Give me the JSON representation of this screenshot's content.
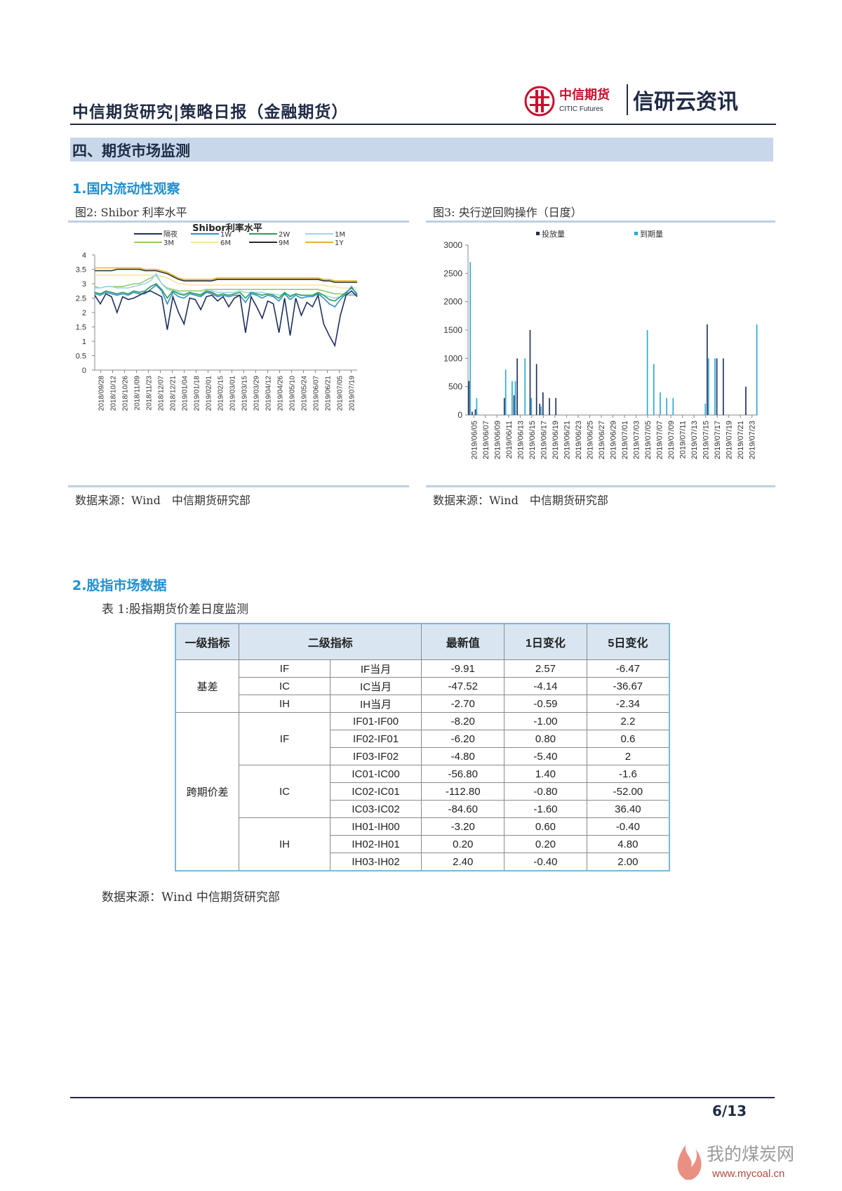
{
  "header": {
    "title": "中信期货研究|策略日报（金融期货）",
    "logo_cn": "中信期货",
    "logo_en": "CITIC Futures",
    "brand": "信研云资讯"
  },
  "section": {
    "title": "四、期货市场监测"
  },
  "sub1": {
    "title": "1.国内流动性观察"
  },
  "fig2": {
    "caption": "图2: Shibor 利率水平",
    "source": "数据来源：Wind　中信期货研究部"
  },
  "fig3": {
    "caption": "图3: 央行逆回购操作（日度）",
    "source": "数据来源：Wind　中信期货研究部"
  },
  "sub2": {
    "title": "2.股指市场数据"
  },
  "table": {
    "caption": "表 1:股指期货价差日度监测",
    "headers": [
      "一级指标",
      "二级指标",
      "最新值",
      "1日变化",
      "5日变化"
    ],
    "basis_label": "基差",
    "spread_label": "跨期价差",
    "basis_rows": [
      [
        "IF",
        "IF当月",
        "-9.91",
        "2.57",
        "-6.47"
      ],
      [
        "IC",
        "IC当月",
        "-47.52",
        "-4.14",
        "-36.67"
      ],
      [
        "IH",
        "IH当月",
        "-2.70",
        "-0.59",
        "-2.34"
      ]
    ],
    "spread_groups": [
      {
        "name": "IF",
        "rows": [
          [
            "IF01-IF00",
            "-8.20",
            "-1.00",
            "2.2"
          ],
          [
            "IF02-IF01",
            "-6.20",
            "0.80",
            "0.6"
          ],
          [
            "IF03-IF02",
            "-4.80",
            "-5.40",
            "2"
          ]
        ]
      },
      {
        "name": "IC",
        "rows": [
          [
            "IC01-IC00",
            "-56.80",
            "1.40",
            "-1.6"
          ],
          [
            "IC02-IC01",
            "-112.80",
            "-0.80",
            "-52.00"
          ],
          [
            "IC03-IC02",
            "-84.60",
            "-1.60",
            "36.40"
          ]
        ]
      },
      {
        "name": "IH",
        "rows": [
          [
            "IH01-IH00",
            "-3.20",
            "0.60",
            "-0.40"
          ],
          [
            "IH02-IH01",
            "0.20",
            "0.20",
            "4.80"
          ],
          [
            "IH03-IH02",
            "2.40",
            "-0.40",
            "2.00"
          ]
        ]
      }
    ],
    "source": "数据来源：Wind  中信期货研究部"
  },
  "footer": {
    "page": "6/13",
    "watermark_cn": "我的煤炭网",
    "watermark_url": "www.mycoal.cn"
  },
  "chart_data": [
    {
      "type": "line",
      "title": "Shibor利率水平",
      "legend": [
        "隔夜",
        "1W",
        "2W",
        "1M",
        "3M",
        "6M",
        "9M",
        "1Y"
      ],
      "colors": [
        "#1f2f5c",
        "#2e8fc6",
        "#2e9a58",
        "#9fd3ef",
        "#8fcf68",
        "#f6e5a0",
        "#2b2b2b",
        "#e3b22a"
      ],
      "ylim": [
        0,
        4
      ],
      "yticks": [
        "0",
        "0.5",
        "1",
        "1.5",
        "2",
        "2.5",
        "3",
        "3.5",
        "4"
      ],
      "xticks": [
        "2018/09/28",
        "2018/10/12",
        "2018/10/26",
        "2018/11/09",
        "2018/11/23",
        "2018/12/07",
        "2018/12/21",
        "2019/01/04",
        "2019/01/18",
        "2019/02/01",
        "2019/02/15",
        "2019/03/01",
        "2019/03/15",
        "2019/03/29",
        "2019/04/12",
        "2019/04/26",
        "2019/05/10",
        "2019/05/24",
        "2019/06/07",
        "2019/06/21",
        "2019/07/05",
        "2019/07/19"
      ],
      "series": [
        {
          "name": "隔夜",
          "values": [
            2.6,
            2.3,
            2.65,
            2.55,
            2.0,
            2.55,
            2.45,
            2.5,
            2.6,
            2.7,
            2.75,
            2.65,
            2.55,
            1.4,
            2.55,
            2.0,
            1.6,
            2.5,
            2.45,
            2.1,
            2.55,
            2.6,
            2.4,
            2.55,
            2.2,
            2.5,
            2.6,
            1.3,
            2.55,
            2.2,
            1.8,
            2.4,
            2.3,
            1.3,
            2.5,
            1.2,
            2.5,
            1.9,
            2.35,
            2.2,
            2.6,
            1.6,
            1.2,
            0.85,
            1.9,
            2.6,
            2.75,
            2.55
          ]
        },
        {
          "name": "1W",
          "values": [
            2.65,
            2.6,
            2.7,
            2.65,
            2.6,
            2.65,
            2.6,
            2.7,
            2.65,
            2.65,
            2.8,
            2.95,
            2.75,
            2.3,
            2.7,
            2.55,
            2.5,
            2.65,
            2.6,
            2.55,
            2.7,
            2.65,
            2.55,
            2.6,
            2.55,
            2.6,
            2.6,
            2.35,
            2.65,
            2.6,
            2.5,
            2.6,
            2.55,
            2.4,
            2.65,
            2.45,
            2.6,
            2.5,
            2.55,
            2.55,
            2.65,
            2.5,
            2.3,
            2.2,
            2.45,
            2.65,
            2.9,
            2.6
          ]
        },
        {
          "name": "2W",
          "values": [
            2.7,
            2.65,
            2.75,
            2.7,
            2.65,
            2.7,
            2.65,
            2.75,
            2.7,
            2.75,
            2.9,
            3.0,
            2.8,
            2.5,
            2.75,
            2.65,
            2.6,
            2.7,
            2.65,
            2.6,
            2.75,
            2.7,
            2.6,
            2.65,
            2.6,
            2.65,
            2.7,
            2.5,
            2.7,
            2.65,
            2.6,
            2.65,
            2.6,
            2.5,
            2.7,
            2.55,
            2.65,
            2.6,
            2.6,
            2.6,
            2.7,
            2.6,
            2.45,
            2.4,
            2.55,
            2.7,
            2.85,
            2.65
          ]
        },
        {
          "name": "1M",
          "values": [
            2.85,
            2.85,
            2.9,
            2.9,
            2.85,
            2.85,
            2.85,
            2.9,
            2.95,
            3.0,
            3.1,
            3.35,
            3.0,
            2.8,
            2.75,
            2.7,
            2.65,
            2.7,
            2.65,
            2.65,
            2.75,
            2.75,
            2.7,
            2.7,
            2.7,
            2.7,
            2.75,
            2.7,
            2.7,
            2.7,
            2.7,
            2.65,
            2.65,
            2.6,
            2.65,
            2.6,
            2.65,
            2.6,
            2.6,
            2.6,
            2.65,
            2.6,
            2.55,
            2.5,
            2.55,
            2.6,
            2.65,
            2.6
          ]
        },
        {
          "name": "3M",
          "values": [
            2.9,
            2.85,
            2.9,
            2.9,
            2.9,
            2.9,
            2.95,
            3.0,
            3.0,
            3.1,
            3.2,
            3.3,
            3.0,
            2.85,
            2.8,
            2.75,
            2.75,
            2.75,
            2.75,
            2.75,
            2.8,
            2.8,
            2.8,
            2.8,
            2.8,
            2.8,
            2.8,
            2.8,
            2.8,
            2.8,
            2.8,
            2.8,
            2.8,
            2.8,
            2.8,
            2.8,
            2.8,
            2.8,
            2.8,
            2.8,
            2.8,
            2.75,
            2.7,
            2.65,
            2.65,
            2.6,
            2.6,
            2.6
          ]
        },
        {
          "name": "6M",
          "values": [
            3.3,
            3.3,
            3.3,
            3.3,
            3.3,
            3.3,
            3.3,
            3.3,
            3.3,
            3.3,
            3.3,
            3.3,
            3.25,
            3.2,
            3.1,
            3.0,
            3.0,
            2.95,
            2.95,
            2.95,
            2.95,
            2.95,
            2.95,
            2.95,
            2.95,
            2.95,
            2.95,
            2.95,
            2.95,
            2.95,
            2.95,
            2.95,
            2.95,
            2.95,
            2.95,
            2.95,
            2.95,
            2.95,
            2.95,
            2.95,
            2.95,
            2.95,
            2.9,
            2.9,
            2.85,
            2.85,
            2.85,
            2.85
          ]
        },
        {
          "name": "9M",
          "values": [
            3.45,
            3.45,
            3.45,
            3.45,
            3.5,
            3.5,
            3.5,
            3.5,
            3.5,
            3.45,
            3.45,
            3.45,
            3.4,
            3.35,
            3.25,
            3.15,
            3.1,
            3.1,
            3.1,
            3.1,
            3.1,
            3.1,
            3.15,
            3.15,
            3.15,
            3.15,
            3.15,
            3.15,
            3.15,
            3.15,
            3.15,
            3.15,
            3.15,
            3.15,
            3.15,
            3.15,
            3.15,
            3.15,
            3.15,
            3.15,
            3.15,
            3.1,
            3.1,
            3.05,
            3.05,
            3.05,
            3.05,
            3.05
          ]
        },
        {
          "name": "1Y",
          "values": [
            3.55,
            3.55,
            3.55,
            3.55,
            3.55,
            3.55,
            3.55,
            3.55,
            3.55,
            3.5,
            3.5,
            3.5,
            3.45,
            3.4,
            3.3,
            3.2,
            3.15,
            3.15,
            3.15,
            3.15,
            3.15,
            3.15,
            3.2,
            3.2,
            3.2,
            3.2,
            3.2,
            3.2,
            3.2,
            3.2,
            3.2,
            3.2,
            3.2,
            3.2,
            3.2,
            3.2,
            3.2,
            3.2,
            3.2,
            3.2,
            3.2,
            3.15,
            3.15,
            3.1,
            3.1,
            3.1,
            3.1,
            3.1
          ]
        }
      ]
    },
    {
      "type": "bar",
      "legend": [
        "投放量",
        "到期量"
      ],
      "colors": [
        "#1f2f5c",
        "#2aa8d8"
      ],
      "ylim": [
        0,
        3000
      ],
      "yticks": [
        "0",
        "500",
        "1000",
        "1500",
        "2000",
        "2500",
        "3000"
      ],
      "xticks": [
        "2019/06/05",
        "2019/06/07",
        "2019/06/09",
        "2019/06/11",
        "2019/06/13",
        "2019/06/15",
        "2019/06/17",
        "2019/06/19",
        "2019/06/21",
        "2019/06/23",
        "2019/06/25",
        "2019/06/27",
        "2019/06/29",
        "2019/07/01",
        "2019/07/03",
        "2019/07/05",
        "2019/07/07",
        "2019/07/09",
        "2019/07/11",
        "2019/07/13",
        "2019/07/15",
        "2019/07/17",
        "2019/07/19",
        "2019/07/21",
        "2019/07/23"
      ],
      "series": [
        {
          "name": "投放量",
          "values": [
            600,
            60,
            100,
            0,
            0,
            0,
            0,
            0,
            0,
            0,
            0,
            300,
            0,
            0,
            350,
            1000,
            0,
            0,
            0,
            1500,
            0,
            900,
            200,
            400,
            0,
            300,
            0,
            300,
            0,
            0,
            0,
            0,
            0,
            0,
            0,
            0,
            0,
            0,
            0,
            0,
            0,
            0,
            0,
            0,
            0,
            0,
            0,
            0,
            0,
            0,
            0,
            0,
            0,
            0,
            0,
            0,
            0,
            0,
            0,
            0,
            0,
            0,
            0,
            0,
            0,
            0,
            0,
            0,
            0,
            0,
            0,
            0,
            0,
            0,
            1600,
            0,
            0,
            1000,
            0,
            1000,
            0,
            0,
            0,
            0,
            0,
            0,
            500,
            0,
            0,
            0
          ]
        },
        {
          "name": "到期量",
          "values": [
            2700,
            0,
            300,
            0,
            0,
            0,
            0,
            0,
            0,
            0,
            0,
            800,
            0,
            600,
            600,
            0,
            0,
            1000,
            0,
            300,
            0,
            0,
            150,
            0,
            0,
            0,
            0,
            0,
            0,
            0,
            0,
            0,
            0,
            0,
            0,
            0,
            0,
            0,
            0,
            0,
            0,
            0,
            0,
            0,
            0,
            0,
            0,
            0,
            0,
            0,
            0,
            0,
            0,
            0,
            0,
            1500,
            0,
            900,
            0,
            400,
            0,
            300,
            0,
            300,
            0,
            0,
            0,
            0,
            0,
            0,
            0,
            0,
            0,
            200,
            1000,
            0,
            1000,
            0,
            0,
            0,
            0,
            0,
            0,
            0,
            0,
            0,
            0,
            0,
            0,
            1600
          ]
        }
      ]
    }
  ]
}
